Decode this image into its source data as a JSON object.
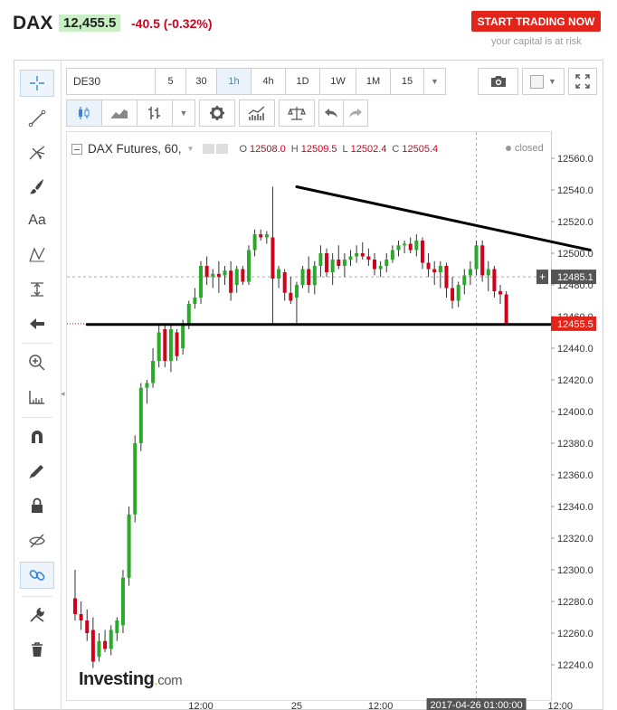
{
  "header": {
    "symbol": "DAX",
    "price": "12,455.5",
    "change": "-40.5 (-0.32%)",
    "cta_label": "START TRADING NOW",
    "risk_note": "your capital is at risk"
  },
  "toolbar": {
    "symbol_value": "DE30",
    "timeframes": [
      "5",
      "30",
      "1h",
      "4h",
      "1D",
      "1W",
      "1M",
      "15"
    ],
    "active_timeframe": "1h"
  },
  "left_tools": [
    "crosshair-icon",
    "trend-line-icon",
    "pitchfork-icon",
    "brush-icon",
    "text-icon",
    "pattern-icon",
    "measure-icon",
    "arrow-icon",
    "zoom-icon",
    "ruler-icon",
    "magnet-icon",
    "pencil-icon",
    "lock-icon",
    "eye-icon",
    "link-icon",
    "tools-icon",
    "trash-icon"
  ],
  "left_tool_text": "Aa",
  "legend": {
    "title": "DAX Futures, 60,",
    "o_key": "O",
    "o_val": "12508.0",
    "h_key": "H",
    "h_val": "12509.5",
    "l_key": "L",
    "l_val": "12502.4",
    "c_key": "C",
    "c_val": "12505.4",
    "status": "closed"
  },
  "brand": {
    "name": "Investing",
    "dot": ".",
    "suffix": "com"
  },
  "colors": {
    "up": "#2aaa2a",
    "down": "#d0021b",
    "price_label": "#e2241a",
    "cross_label": "#555555"
  },
  "chart_data": {
    "type": "candlestick",
    "title": "DAX Futures, 60,",
    "ylim": [
      12225,
      12570
    ],
    "y_ticks": [
      12240,
      12260,
      12280,
      12300,
      12320,
      12340,
      12360,
      12380,
      12400,
      12420,
      12440,
      12460,
      12480,
      12500,
      12520,
      12540,
      12560
    ],
    "y_tick_labels": [
      "12240.0",
      "12260.0",
      "12280.0",
      "12300.0",
      "12320.0",
      "12340.0",
      "12360.0",
      "12380.0",
      "12400.0",
      "12420.0",
      "12440.0",
      "12460.0",
      "12480.0",
      "12500.0",
      "12520.0",
      "12540.0",
      "12560.0"
    ],
    "x_ticks": [
      {
        "index": 21,
        "label": "12:00"
      },
      {
        "index": 37,
        "label": "25"
      },
      {
        "index": 51,
        "label": "12:00"
      },
      {
        "index": 81,
        "label": "12:00"
      }
    ],
    "crosshair": {
      "index": 67,
      "x_label": "2017-04-26 01:00:00",
      "y_value": 12485.1,
      "y_label": "12485.1"
    },
    "last_price": {
      "value": 12455.5,
      "label": "12455.5"
    },
    "grid": false,
    "trendlines": [
      {
        "name": "resistance",
        "from": {
          "index": 37,
          "value": 12542
        },
        "to": {
          "index": 86,
          "value": 12502
        }
      },
      {
        "name": "support",
        "from": {
          "index": 2,
          "value": 12455
        },
        "to": {
          "index": 86,
          "value": 12455
        }
      }
    ],
    "candles": [
      {
        "o": 12282,
        "h": 12300,
        "l": 12268,
        "c": 12272
      },
      {
        "o": 12272,
        "h": 12280,
        "l": 12262,
        "c": 12268
      },
      {
        "o": 12268,
        "h": 12275,
        "l": 12255,
        "c": 12260
      },
      {
        "o": 12262,
        "h": 12270,
        "l": 12238,
        "c": 12242
      },
      {
        "o": 12245,
        "h": 12260,
        "l": 12242,
        "c": 12255
      },
      {
        "o": 12255,
        "h": 12262,
        "l": 12248,
        "c": 12250
      },
      {
        "o": 12250,
        "h": 12265,
        "l": 12246,
        "c": 12262
      },
      {
        "o": 12260,
        "h": 12270,
        "l": 12255,
        "c": 12268
      },
      {
        "o": 12265,
        "h": 12300,
        "l": 12260,
        "c": 12295
      },
      {
        "o": 12295,
        "h": 12340,
        "l": 12290,
        "c": 12335
      },
      {
        "o": 12335,
        "h": 12385,
        "l": 12330,
        "c": 12380
      },
      {
        "o": 12380,
        "h": 12418,
        "l": 12375,
        "c": 12415
      },
      {
        "o": 12415,
        "h": 12420,
        "l": 12405,
        "c": 12418
      },
      {
        "o": 12418,
        "h": 12440,
        "l": 12415,
        "c": 12432
      },
      {
        "o": 12432,
        "h": 12455,
        "l": 12428,
        "c": 12450
      },
      {
        "o": 12452,
        "h": 12455,
        "l": 12428,
        "c": 12432
      },
      {
        "o": 12432,
        "h": 12455,
        "l": 12425,
        "c": 12452
      },
      {
        "o": 12450,
        "h": 12452,
        "l": 12432,
        "c": 12435
      },
      {
        "o": 12440,
        "h": 12458,
        "l": 12436,
        "c": 12455
      },
      {
        "o": 12455,
        "h": 12470,
        "l": 12452,
        "c": 12468
      },
      {
        "o": 12468,
        "h": 12478,
        "l": 12465,
        "c": 12472
      },
      {
        "o": 12472,
        "h": 12495,
        "l": 12468,
        "c": 12492
      },
      {
        "o": 12492,
        "h": 12498,
        "l": 12480,
        "c": 12485
      },
      {
        "o": 12485,
        "h": 12490,
        "l": 12478,
        "c": 12487
      },
      {
        "o": 12487,
        "h": 12495,
        "l": 12475,
        "c": 12485
      },
      {
        "o": 12486,
        "h": 12492,
        "l": 12480,
        "c": 12489
      },
      {
        "o": 12489,
        "h": 12495,
        "l": 12470,
        "c": 12475
      },
      {
        "o": 12480,
        "h": 12492,
        "l": 12475,
        "c": 12490
      },
      {
        "o": 12490,
        "h": 12492,
        "l": 12480,
        "c": 12482
      },
      {
        "o": 12482,
        "h": 12505,
        "l": 12480,
        "c": 12502
      },
      {
        "o": 12502,
        "h": 12515,
        "l": 12498,
        "c": 12512
      },
      {
        "o": 12512,
        "h": 12515,
        "l": 12508,
        "c": 12510
      },
      {
        "o": 12510,
        "h": 12514,
        "l": 12506,
        "c": 12512
      },
      {
        "o": 12510,
        "h": 12542,
        "l": 12455,
        "c": 12484
      },
      {
        "o": 12484,
        "h": 12492,
        "l": 12478,
        "c": 12490
      },
      {
        "o": 12488,
        "h": 12490,
        "l": 12470,
        "c": 12475
      },
      {
        "o": 12475,
        "h": 12485,
        "l": 12468,
        "c": 12470
      },
      {
        "o": 12472,
        "h": 12482,
        "l": 12456,
        "c": 12480
      },
      {
        "o": 12480,
        "h": 12492,
        "l": 12478,
        "c": 12490
      },
      {
        "o": 12490,
        "h": 12498,
        "l": 12475,
        "c": 12480
      },
      {
        "o": 12480,
        "h": 12495,
        "l": 12474,
        "c": 12492
      },
      {
        "o": 12492,
        "h": 12505,
        "l": 12485,
        "c": 12500
      },
      {
        "o": 12500,
        "h": 12503,
        "l": 12485,
        "c": 12488
      },
      {
        "o": 12488,
        "h": 12500,
        "l": 12480,
        "c": 12496
      },
      {
        "o": 12496,
        "h": 12505,
        "l": 12490,
        "c": 12492
      },
      {
        "o": 12492,
        "h": 12500,
        "l": 12485,
        "c": 12496
      },
      {
        "o": 12496,
        "h": 12502,
        "l": 12492,
        "c": 12498
      },
      {
        "o": 12498,
        "h": 12505,
        "l": 12494,
        "c": 12500
      },
      {
        "o": 12500,
        "h": 12507,
        "l": 12496,
        "c": 12498
      },
      {
        "o": 12498,
        "h": 12503,
        "l": 12492,
        "c": 12496
      },
      {
        "o": 12496,
        "h": 12500,
        "l": 12486,
        "c": 12490
      },
      {
        "o": 12490,
        "h": 12495,
        "l": 12485,
        "c": 12492
      },
      {
        "o": 12492,
        "h": 12500,
        "l": 12488,
        "c": 12496
      },
      {
        "o": 12496,
        "h": 12505,
        "l": 12494,
        "c": 12502
      },
      {
        "o": 12502,
        "h": 12508,
        "l": 12498,
        "c": 12505
      },
      {
        "o": 12505,
        "h": 12508,
        "l": 12500,
        "c": 12506
      },
      {
        "o": 12506,
        "h": 12510,
        "l": 12500,
        "c": 12502
      },
      {
        "o": 12502,
        "h": 12512,
        "l": 12498,
        "c": 12508
      },
      {
        "o": 12508,
        "h": 12510,
        "l": 12490,
        "c": 12494
      },
      {
        "o": 12494,
        "h": 12500,
        "l": 12485,
        "c": 12490
      },
      {
        "o": 12490,
        "h": 12495,
        "l": 12480,
        "c": 12488
      },
      {
        "o": 12488,
        "h": 12495,
        "l": 12478,
        "c": 12492
      },
      {
        "o": 12492,
        "h": 12494,
        "l": 12472,
        "c": 12478
      },
      {
        "o": 12478,
        "h": 12485,
        "l": 12465,
        "c": 12470
      },
      {
        "o": 12470,
        "h": 12482,
        "l": 12466,
        "c": 12480
      },
      {
        "o": 12480,
        "h": 12490,
        "l": 12474,
        "c": 12486
      },
      {
        "o": 12486,
        "h": 12495,
        "l": 12480,
        "c": 12490
      },
      {
        "o": 12490,
        "h": 12508,
        "l": 12486,
        "c": 12505
      },
      {
        "o": 12505,
        "h": 12508,
        "l": 12482,
        "c": 12486
      },
      {
        "o": 12486,
        "h": 12495,
        "l": 12476,
        "c": 12490
      },
      {
        "o": 12490,
        "h": 12492,
        "l": 12472,
        "c": 12476
      },
      {
        "o": 12476,
        "h": 12480,
        "l": 12468,
        "c": 12474
      },
      {
        "o": 12474,
        "h": 12476,
        "l": 12455,
        "c": 12456
      }
    ]
  }
}
